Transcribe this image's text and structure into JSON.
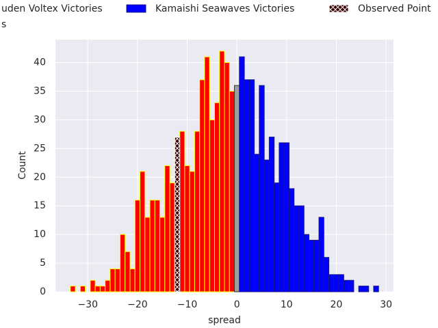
{
  "chart_data": {
    "type": "histogram",
    "x_label": "spread",
    "y_label": "Count",
    "xlim": [
      -36.5,
      31.5
    ],
    "ylim": [
      0,
      44
    ],
    "xticks": [
      {
        "value": -30,
        "label": "−30"
      },
      {
        "value": -20,
        "label": "−20"
      },
      {
        "value": -10,
        "label": "−10"
      },
      0,
      10,
      20,
      30
    ],
    "yticks": [
      0,
      5,
      10,
      15,
      20,
      25,
      30,
      35,
      40
    ],
    "grid": true,
    "series": [
      {
        "name": "uden Voltex Victories",
        "color": "#ff0000",
        "edgecolor": "#ffff00",
        "bins": [
          -33.5,
          -32.5,
          -31.5,
          -30.5,
          -29.5,
          -28.5,
          -27.5,
          -26.5,
          -25.5,
          -24.5,
          -23.5,
          -22.5,
          -21.5,
          -20.5,
          -19.5,
          -18.5,
          -17.5,
          -16.5,
          -15.5,
          -14.5,
          -13.5,
          -12.5,
          -11.5,
          -10.5,
          -9.5,
          -8.5,
          -7.5,
          -6.5,
          -5.5,
          -4.5,
          -3.5,
          -2.5,
          -1.5,
          -0.5
        ],
        "values": [
          1,
          0,
          1,
          0,
          2,
          1,
          1,
          2,
          4,
          4,
          10,
          7,
          4,
          16,
          21,
          13,
          16,
          16,
          13,
          22,
          19,
          27,
          28,
          22,
          21,
          28,
          37,
          41,
          30,
          33,
          42,
          40,
          35
        ]
      },
      {
        "name": "s",
        "color": "#a0a0a0",
        "edgecolor": "#303030",
        "bins": [
          -0.5,
          0.5
        ],
        "values": [
          36
        ]
      },
      {
        "name": "Kamaishi Seawaves Victories",
        "color": "#0000ff",
        "edgecolor": "#1a1a80",
        "bins": [
          0.5,
          1.5,
          2.5,
          3.5,
          4.5,
          5.5,
          6.5,
          7.5,
          8.5,
          9.5,
          10.5,
          11.5,
          12.5,
          13.5,
          14.5,
          15.5,
          16.5,
          17.5,
          18.5,
          19.5,
          20.5,
          21.5,
          22.5,
          23.5,
          24.5,
          25.5,
          26.5,
          27.5,
          28.5
        ],
        "values": [
          41,
          37,
          37,
          24,
          36,
          23,
          27,
          19,
          26,
          26,
          18,
          15,
          15,
          10,
          9,
          9,
          13,
          6,
          3,
          3,
          3,
          2,
          2,
          0,
          1,
          1,
          0,
          1
        ]
      },
      {
        "name": "Observed Point",
        "color": "#3a0000",
        "edgecolor": "#ffffff",
        "hatch": "x",
        "bins": [
          -12.5,
          -11.5
        ],
        "values": [
          27
        ]
      }
    ]
  }
}
